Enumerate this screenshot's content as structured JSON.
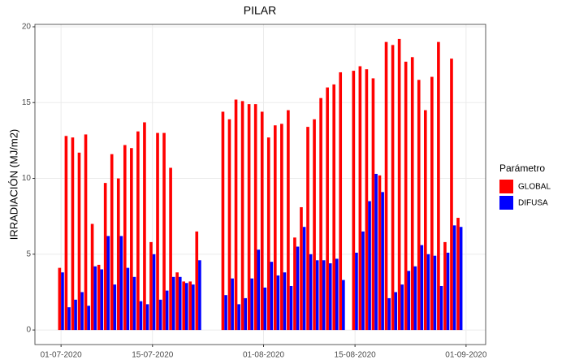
{
  "chart_data": {
    "type": "bar",
    "title": "PILAR",
    "y_label": "IRRADIACIÓN (MJ/m2)",
    "x": [
      "2020-07-01",
      "2020-07-02",
      "2020-07-03",
      "2020-07-04",
      "2020-07-05",
      "2020-07-06",
      "2020-07-07",
      "2020-07-08",
      "2020-07-09",
      "2020-07-10",
      "2020-07-11",
      "2020-07-12",
      "2020-07-13",
      "2020-07-14",
      "2020-07-15",
      "2020-07-16",
      "2020-07-17",
      "2020-07-18",
      "2020-07-19",
      "2020-07-20",
      "2020-07-21",
      "2020-07-22",
      "2020-07-26",
      "2020-07-27",
      "2020-07-28",
      "2020-07-29",
      "2020-07-30",
      "2020-07-31",
      "2020-08-01",
      "2020-08-02",
      "2020-08-03",
      "2020-08-04",
      "2020-08-05",
      "2020-08-06",
      "2020-08-07",
      "2020-08-08",
      "2020-08-09",
      "2020-08-10",
      "2020-08-11",
      "2020-08-12",
      "2020-08-13",
      "2020-08-15",
      "2020-08-16",
      "2020-08-17",
      "2020-08-18",
      "2020-08-19",
      "2020-08-20",
      "2020-08-21",
      "2020-08-22",
      "2020-08-23",
      "2020-08-24",
      "2020-08-25",
      "2020-08-26",
      "2020-08-27",
      "2020-08-28",
      "2020-08-29",
      "2020-08-30",
      "2020-08-31"
    ],
    "series": [
      {
        "name": "GLOBAL",
        "color": "#ff0000",
        "values": [
          4.1,
          12.8,
          12.7,
          11.7,
          12.9,
          7.0,
          4.3,
          9.7,
          11.6,
          10.0,
          12.2,
          12.0,
          13.1,
          13.7,
          5.8,
          13.0,
          13.0,
          10.7,
          3.8,
          3.2,
          3.2,
          6.5,
          14.4,
          13.9,
          15.2,
          15.1,
          14.9,
          14.9,
          14.4,
          12.7,
          13.5,
          13.6,
          14.5,
          6.1,
          8.1,
          13.4,
          13.9,
          15.3,
          16.0,
          16.2,
          17.0,
          17.1,
          17.4,
          17.2,
          16.6,
          10.2,
          19.0,
          18.8,
          19.2,
          17.7,
          18.0,
          16.5,
          14.5,
          16.7,
          19.0,
          5.8,
          17.9,
          7.4
        ]
      },
      {
        "name": "DIFUSA",
        "color": "#0000ff",
        "values": [
          3.8,
          1.5,
          2.0,
          2.5,
          1.6,
          4.2,
          4.0,
          6.2,
          3.0,
          6.2,
          4.1,
          3.5,
          1.9,
          1.7,
          5.0,
          2.0,
          2.6,
          3.5,
          3.5,
          3.1,
          3.0,
          4.6,
          2.3,
          3.4,
          1.7,
          2.1,
          3.4,
          5.3,
          2.8,
          4.5,
          3.6,
          3.8,
          2.9,
          5.5,
          6.8,
          5.0,
          4.6,
          4.6,
          4.4,
          4.7,
          3.3,
          5.1,
          6.5,
          8.5,
          10.3,
          9.1,
          2.1,
          2.5,
          3.0,
          3.9,
          4.2,
          5.6,
          5.0,
          4.9,
          2.9,
          5.1,
          6.9,
          6.8
        ]
      }
    ],
    "legend_title": "Parámetro",
    "ylim": [
      -0.96,
      20.16
    ],
    "yticks": [
      0,
      5,
      10,
      15,
      20
    ],
    "xlim": [
      "2020-06-27",
      "2020-09-04"
    ],
    "xticks": [
      {
        "value": "2020-07-01",
        "label": "01-07-2020"
      },
      {
        "value": "2020-07-15",
        "label": "15-07-2020"
      },
      {
        "value": "2020-08-01",
        "label": "01-08-2020"
      },
      {
        "value": "2020-08-15",
        "label": "15-08-2020"
      },
      {
        "value": "2020-09-01",
        "label": "01-09-2020"
      }
    ],
    "grid": true
  }
}
